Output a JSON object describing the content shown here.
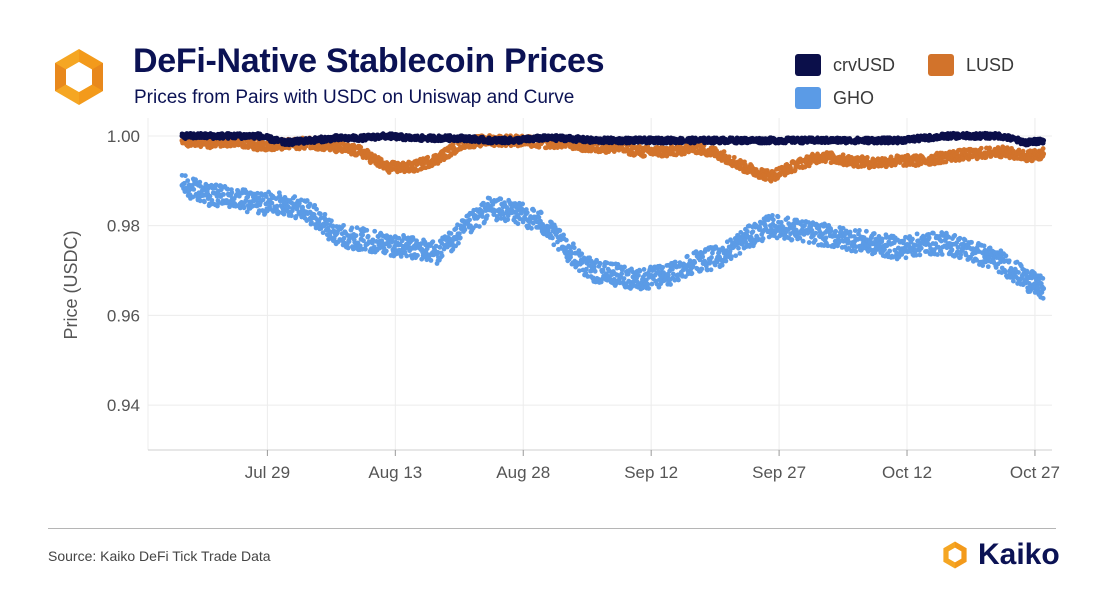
{
  "header": {
    "title": "DeFi-Native Stablecoin Prices",
    "subtitle": "Prices from Pairs with USDC on Uniswap and Curve"
  },
  "footer": {
    "source": "Source: Kaiko DeFi Tick Trade Data",
    "brand": "Kaiko"
  },
  "colors": {
    "crvUSD": "#0b0f4a",
    "LUSD": "#d2732b",
    "GHO": "#5b9be6",
    "brand_orange": "#f5a623",
    "title_navy": "#0b1254"
  },
  "icons": {
    "logo": "kaiko-logo-icon"
  },
  "chart_data": {
    "type": "scatter",
    "title": "DeFi-Native Stablecoin Prices",
    "subtitle": "Prices from Pairs with USDC on Uniswap and Curve",
    "xlabel": "",
    "ylabel": "Price (USDC)",
    "xlim": [
      "2023-07-15",
      "2023-10-29"
    ],
    "ylim": [
      0.93,
      1.004
    ],
    "x_ticks": [
      "Jul 29",
      "Aug 13",
      "Aug 28",
      "Sep 12",
      "Sep 27",
      "Oct 12",
      "Oct 27"
    ],
    "x_tick_dates": [
      "2023-07-29",
      "2023-08-13",
      "2023-08-28",
      "2023-09-12",
      "2023-09-27",
      "2023-10-12",
      "2023-10-27"
    ],
    "y_ticks": [
      0.94,
      0.96,
      0.98,
      1.0
    ],
    "y_tick_labels": [
      "0.94",
      "0.96",
      "0.98",
      "1.00"
    ],
    "grid": true,
    "legend_position": "top-right",
    "series": [
      {
        "name": "crvUSD",
        "x": [
          "2023-07-19",
          "2023-07-22",
          "2023-07-25",
          "2023-07-28",
          "2023-07-31",
          "2023-08-03",
          "2023-08-06",
          "2023-08-09",
          "2023-08-12",
          "2023-08-15",
          "2023-08-18",
          "2023-08-21",
          "2023-08-24",
          "2023-08-27",
          "2023-08-30",
          "2023-09-02",
          "2023-09-05",
          "2023-09-08",
          "2023-09-11",
          "2023-09-14",
          "2023-09-17",
          "2023-09-20",
          "2023-09-23",
          "2023-09-26",
          "2023-09-29",
          "2023-10-02",
          "2023-10-05",
          "2023-10-08",
          "2023-10-11",
          "2023-10-14",
          "2023-10-17",
          "2023-10-20",
          "2023-10-23",
          "2023-10-26",
          "2023-10-28"
        ],
        "values": [
          1.0,
          1.0,
          1.0,
          1.0,
          0.9985,
          0.999,
          0.9995,
          0.9995,
          1.0,
          0.9995,
          0.9995,
          0.9995,
          0.999,
          0.999,
          0.9995,
          0.9995,
          0.999,
          0.999,
          0.999,
          0.999,
          0.999,
          0.999,
          0.999,
          0.999,
          0.999,
          0.999,
          0.999,
          0.999,
          0.999,
          0.9995,
          1.0,
          1.0,
          1.0,
          0.9985,
          0.999
        ]
      },
      {
        "name": "LUSD",
        "x": [
          "2023-07-19",
          "2023-07-22",
          "2023-07-25",
          "2023-07-28",
          "2023-07-31",
          "2023-08-03",
          "2023-08-06",
          "2023-08-09",
          "2023-08-12",
          "2023-08-15",
          "2023-08-18",
          "2023-08-21",
          "2023-08-24",
          "2023-08-27",
          "2023-08-30",
          "2023-09-02",
          "2023-09-05",
          "2023-09-08",
          "2023-09-11",
          "2023-09-14",
          "2023-09-17",
          "2023-09-20",
          "2023-09-23",
          "2023-09-26",
          "2023-09-29",
          "2023-10-02",
          "2023-10-05",
          "2023-10-08",
          "2023-10-11",
          "2023-10-14",
          "2023-10-17",
          "2023-10-20",
          "2023-10-23",
          "2023-10-26",
          "2023-10-28"
        ],
        "values": [
          0.999,
          0.9985,
          0.999,
          0.998,
          0.998,
          0.9985,
          0.9975,
          0.9965,
          0.993,
          0.993,
          0.995,
          0.9985,
          0.999,
          0.999,
          0.9985,
          0.9985,
          0.9975,
          0.9975,
          0.9965,
          0.9965,
          0.9975,
          0.996,
          0.993,
          0.991,
          0.9935,
          0.9955,
          0.9945,
          0.994,
          0.9945,
          0.9945,
          0.9955,
          0.996,
          0.9965,
          0.9955,
          0.996
        ]
      },
      {
        "name": "GHO",
        "x": [
          "2023-07-19",
          "2023-07-22",
          "2023-07-25",
          "2023-07-28",
          "2023-07-31",
          "2023-08-03",
          "2023-08-06",
          "2023-08-09",
          "2023-08-12",
          "2023-08-15",
          "2023-08-18",
          "2023-08-21",
          "2023-08-24",
          "2023-08-27",
          "2023-08-30",
          "2023-09-02",
          "2023-09-05",
          "2023-09-08",
          "2023-09-11",
          "2023-09-14",
          "2023-09-17",
          "2023-09-20",
          "2023-09-23",
          "2023-09-26",
          "2023-09-29",
          "2023-10-02",
          "2023-10-05",
          "2023-10-08",
          "2023-10-11",
          "2023-10-14",
          "2023-10-17",
          "2023-10-20",
          "2023-10-23",
          "2023-10-26",
          "2023-10-28"
        ],
        "values": [
          0.989,
          0.987,
          0.986,
          0.985,
          0.985,
          0.983,
          0.978,
          0.977,
          0.976,
          0.975,
          0.974,
          0.979,
          0.984,
          0.983,
          0.981,
          0.975,
          0.97,
          0.969,
          0.968,
          0.969,
          0.972,
          0.973,
          0.977,
          0.98,
          0.979,
          0.978,
          0.977,
          0.976,
          0.975,
          0.976,
          0.976,
          0.974,
          0.972,
          0.968,
          0.966
        ]
      }
    ]
  }
}
